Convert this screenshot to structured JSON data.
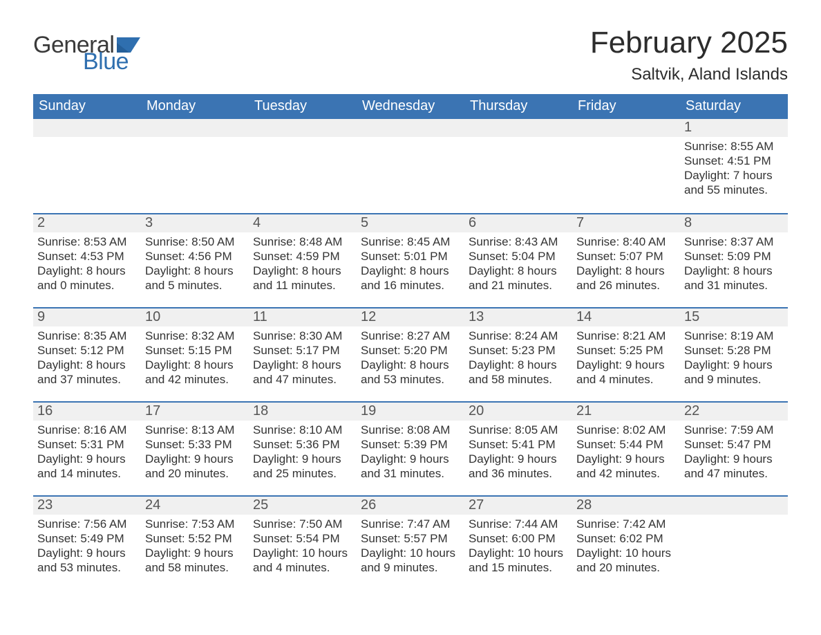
{
  "logo": {
    "text1": "General",
    "text2": "Blue",
    "flag_color": "#2f6faf"
  },
  "header": {
    "month_title": "February 2025",
    "location": "Saltvik, Aland Islands"
  },
  "colors": {
    "header_bg": "#3b74b3",
    "header_text": "#ffffff",
    "row_divider": "#3b74b3",
    "daynum_bg": "#f0f0f0",
    "daynum_text": "#555555",
    "body_text": "#333333",
    "page_bg": "#ffffff"
  },
  "calendar": {
    "day_names": [
      "Sunday",
      "Monday",
      "Tuesday",
      "Wednesday",
      "Thursday",
      "Friday",
      "Saturday"
    ],
    "weeks": [
      [
        {
          "blank": true
        },
        {
          "blank": true
        },
        {
          "blank": true
        },
        {
          "blank": true
        },
        {
          "blank": true
        },
        {
          "blank": true
        },
        {
          "day": "1",
          "sunrise": "Sunrise: 8:55 AM",
          "sunset": "Sunset: 4:51 PM",
          "daylight1": "Daylight: 7 hours",
          "daylight2": "and 55 minutes."
        }
      ],
      [
        {
          "day": "2",
          "sunrise": "Sunrise: 8:53 AM",
          "sunset": "Sunset: 4:53 PM",
          "daylight1": "Daylight: 8 hours",
          "daylight2": "and 0 minutes."
        },
        {
          "day": "3",
          "sunrise": "Sunrise: 8:50 AM",
          "sunset": "Sunset: 4:56 PM",
          "daylight1": "Daylight: 8 hours",
          "daylight2": "and 5 minutes."
        },
        {
          "day": "4",
          "sunrise": "Sunrise: 8:48 AM",
          "sunset": "Sunset: 4:59 PM",
          "daylight1": "Daylight: 8 hours",
          "daylight2": "and 11 minutes."
        },
        {
          "day": "5",
          "sunrise": "Sunrise: 8:45 AM",
          "sunset": "Sunset: 5:01 PM",
          "daylight1": "Daylight: 8 hours",
          "daylight2": "and 16 minutes."
        },
        {
          "day": "6",
          "sunrise": "Sunrise: 8:43 AM",
          "sunset": "Sunset: 5:04 PM",
          "daylight1": "Daylight: 8 hours",
          "daylight2": "and 21 minutes."
        },
        {
          "day": "7",
          "sunrise": "Sunrise: 8:40 AM",
          "sunset": "Sunset: 5:07 PM",
          "daylight1": "Daylight: 8 hours",
          "daylight2": "and 26 minutes."
        },
        {
          "day": "8",
          "sunrise": "Sunrise: 8:37 AM",
          "sunset": "Sunset: 5:09 PM",
          "daylight1": "Daylight: 8 hours",
          "daylight2": "and 31 minutes."
        }
      ],
      [
        {
          "day": "9",
          "sunrise": "Sunrise: 8:35 AM",
          "sunset": "Sunset: 5:12 PM",
          "daylight1": "Daylight: 8 hours",
          "daylight2": "and 37 minutes."
        },
        {
          "day": "10",
          "sunrise": "Sunrise: 8:32 AM",
          "sunset": "Sunset: 5:15 PM",
          "daylight1": "Daylight: 8 hours",
          "daylight2": "and 42 minutes."
        },
        {
          "day": "11",
          "sunrise": "Sunrise: 8:30 AM",
          "sunset": "Sunset: 5:17 PM",
          "daylight1": "Daylight: 8 hours",
          "daylight2": "and 47 minutes."
        },
        {
          "day": "12",
          "sunrise": "Sunrise: 8:27 AM",
          "sunset": "Sunset: 5:20 PM",
          "daylight1": "Daylight: 8 hours",
          "daylight2": "and 53 minutes."
        },
        {
          "day": "13",
          "sunrise": "Sunrise: 8:24 AM",
          "sunset": "Sunset: 5:23 PM",
          "daylight1": "Daylight: 8 hours",
          "daylight2": "and 58 minutes."
        },
        {
          "day": "14",
          "sunrise": "Sunrise: 8:21 AM",
          "sunset": "Sunset: 5:25 PM",
          "daylight1": "Daylight: 9 hours",
          "daylight2": "and 4 minutes."
        },
        {
          "day": "15",
          "sunrise": "Sunrise: 8:19 AM",
          "sunset": "Sunset: 5:28 PM",
          "daylight1": "Daylight: 9 hours",
          "daylight2": "and 9 minutes."
        }
      ],
      [
        {
          "day": "16",
          "sunrise": "Sunrise: 8:16 AM",
          "sunset": "Sunset: 5:31 PM",
          "daylight1": "Daylight: 9 hours",
          "daylight2": "and 14 minutes."
        },
        {
          "day": "17",
          "sunrise": "Sunrise: 8:13 AM",
          "sunset": "Sunset: 5:33 PM",
          "daylight1": "Daylight: 9 hours",
          "daylight2": "and 20 minutes."
        },
        {
          "day": "18",
          "sunrise": "Sunrise: 8:10 AM",
          "sunset": "Sunset: 5:36 PM",
          "daylight1": "Daylight: 9 hours",
          "daylight2": "and 25 minutes."
        },
        {
          "day": "19",
          "sunrise": "Sunrise: 8:08 AM",
          "sunset": "Sunset: 5:39 PM",
          "daylight1": "Daylight: 9 hours",
          "daylight2": "and 31 minutes."
        },
        {
          "day": "20",
          "sunrise": "Sunrise: 8:05 AM",
          "sunset": "Sunset: 5:41 PM",
          "daylight1": "Daylight: 9 hours",
          "daylight2": "and 36 minutes."
        },
        {
          "day": "21",
          "sunrise": "Sunrise: 8:02 AM",
          "sunset": "Sunset: 5:44 PM",
          "daylight1": "Daylight: 9 hours",
          "daylight2": "and 42 minutes."
        },
        {
          "day": "22",
          "sunrise": "Sunrise: 7:59 AM",
          "sunset": "Sunset: 5:47 PM",
          "daylight1": "Daylight: 9 hours",
          "daylight2": "and 47 minutes."
        }
      ],
      [
        {
          "day": "23",
          "sunrise": "Sunrise: 7:56 AM",
          "sunset": "Sunset: 5:49 PM",
          "daylight1": "Daylight: 9 hours",
          "daylight2": "and 53 minutes."
        },
        {
          "day": "24",
          "sunrise": "Sunrise: 7:53 AM",
          "sunset": "Sunset: 5:52 PM",
          "daylight1": "Daylight: 9 hours",
          "daylight2": "and 58 minutes."
        },
        {
          "day": "25",
          "sunrise": "Sunrise: 7:50 AM",
          "sunset": "Sunset: 5:54 PM",
          "daylight1": "Daylight: 10 hours",
          "daylight2": "and 4 minutes."
        },
        {
          "day": "26",
          "sunrise": "Sunrise: 7:47 AM",
          "sunset": "Sunset: 5:57 PM",
          "daylight1": "Daylight: 10 hours",
          "daylight2": "and 9 minutes."
        },
        {
          "day": "27",
          "sunrise": "Sunrise: 7:44 AM",
          "sunset": "Sunset: 6:00 PM",
          "daylight1": "Daylight: 10 hours",
          "daylight2": "and 15 minutes."
        },
        {
          "day": "28",
          "sunrise": "Sunrise: 7:42 AM",
          "sunset": "Sunset: 6:02 PM",
          "daylight1": "Daylight: 10 hours",
          "daylight2": "and 20 minutes."
        },
        {
          "blank": true
        }
      ]
    ]
  }
}
